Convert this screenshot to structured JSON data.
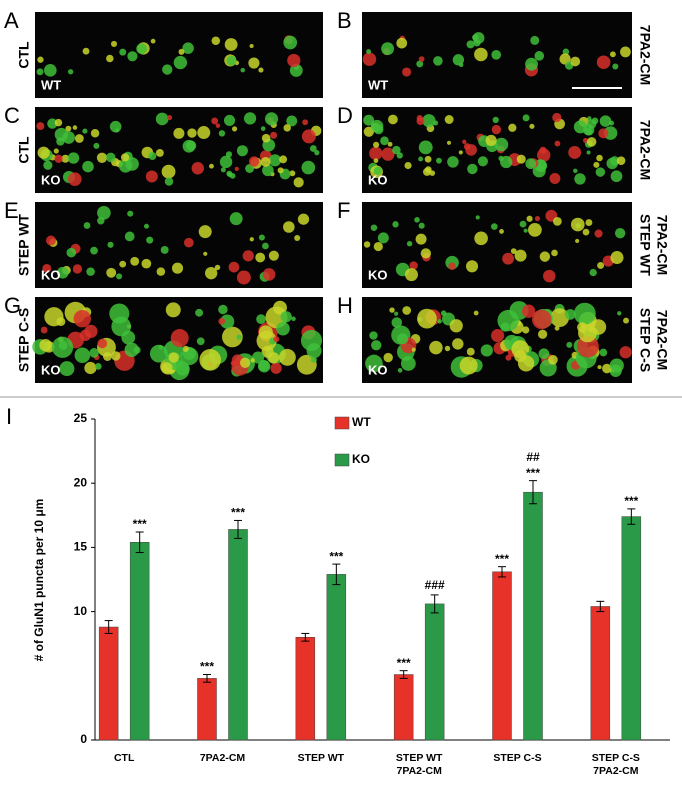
{
  "panels": [
    {
      "letter": "A",
      "condition": "CTL",
      "genotype": "WT"
    },
    {
      "letter": "B",
      "condition": "7PA2-CM",
      "genotype": "WT"
    },
    {
      "letter": "C",
      "condition": "CTL",
      "genotype": "KO"
    },
    {
      "letter": "D",
      "condition": "7PA2-CM",
      "genotype": "KO"
    },
    {
      "letter": "E",
      "condition": "STEP WT",
      "genotype": "KO"
    },
    {
      "letter": "F",
      "condition": [
        "STEP WT",
        "7PA2-CM"
      ],
      "genotype": "KO"
    },
    {
      "letter": "G",
      "condition": "STEP C-S",
      "genotype": "KO"
    },
    {
      "letter": "H",
      "condition": [
        "STEP C-S",
        "7PA2-CM"
      ],
      "genotype": "KO"
    }
  ],
  "chart_data": {
    "type": "bar",
    "panel": "I",
    "y_label": "# of GluN1 puncta per 10 μm",
    "categories": [
      [
        "CTL"
      ],
      [
        "7PA2-CM"
      ],
      [
        "STEP WT"
      ],
      [
        "STEP WT",
        "7PA2-CM"
      ],
      [
        "STEP C-S"
      ],
      [
        "STEP C-S",
        "7PA2-CM"
      ]
    ],
    "series": [
      {
        "name": "WT",
        "color": "#e63228",
        "values": [
          8.8,
          4.8,
          8.0,
          5.1,
          13.1,
          10.4
        ],
        "errors": [
          0.5,
          0.3,
          0.3,
          0.3,
          0.4,
          0.4
        ],
        "stars": [
          null,
          "***",
          null,
          "***",
          "***",
          null
        ],
        "hashes": [
          null,
          null,
          null,
          null,
          null,
          null
        ]
      },
      {
        "name": "KO",
        "color": "#2a9a48",
        "values": [
          15.4,
          16.4,
          12.9,
          10.6,
          19.3,
          17.4
        ],
        "errors": [
          0.8,
          0.7,
          0.8,
          0.7,
          0.9,
          0.6
        ],
        "stars": [
          "***",
          "***",
          "***",
          null,
          "***",
          "***"
        ],
        "hashes": [
          null,
          null,
          null,
          "###",
          "##",
          null
        ]
      }
    ],
    "ylim": [
      0,
      25
    ],
    "yticks": [
      0,
      10,
      15,
      20,
      25
    ]
  }
}
